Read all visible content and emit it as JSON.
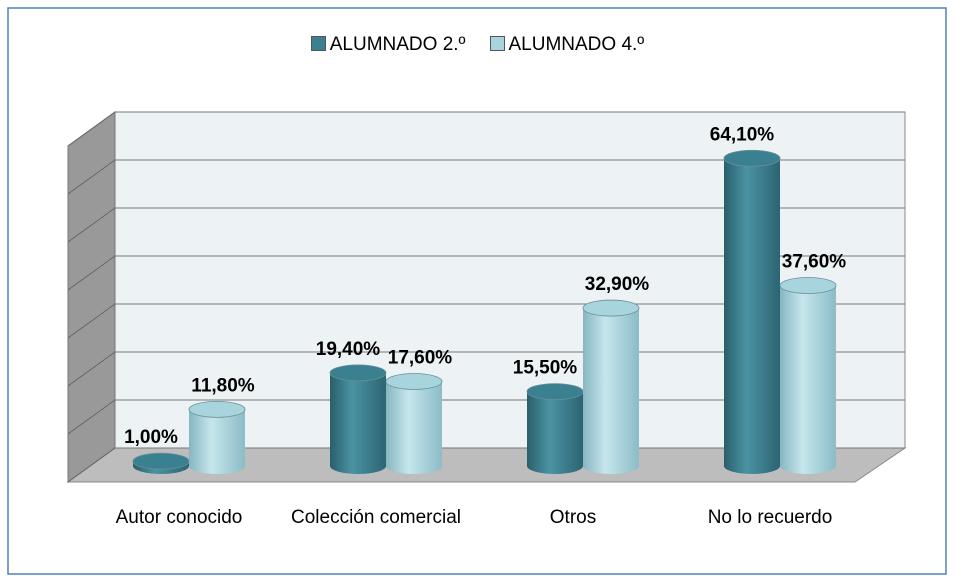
{
  "chart_data": {
    "type": "bar3d",
    "categories": [
      "Autor conocido",
      "Colección comercial",
      "Otros",
      "No lo recuerdo"
    ],
    "series": [
      {
        "name": "ALUMNADO 2.º",
        "color": "#3b8090",
        "values": [
          1.0,
          19.4,
          15.5,
          64.1
        ],
        "value_labels": [
          "1,00%",
          "19,40%",
          "15,50%",
          "64,10%"
        ]
      },
      {
        "name": "ALUMNADO 4.º",
        "color": "#a8d4dd",
        "values": [
          11.8,
          17.6,
          32.9,
          37.6
        ],
        "value_labels": [
          "11,80%",
          "17,60%",
          "32,90%",
          "37,60%"
        ]
      }
    ],
    "ylim": [
      0,
      70
    ],
    "yticks": [
      0,
      10,
      20,
      30,
      40,
      50,
      60,
      70
    ],
    "grid": true,
    "legend": "top"
  }
}
